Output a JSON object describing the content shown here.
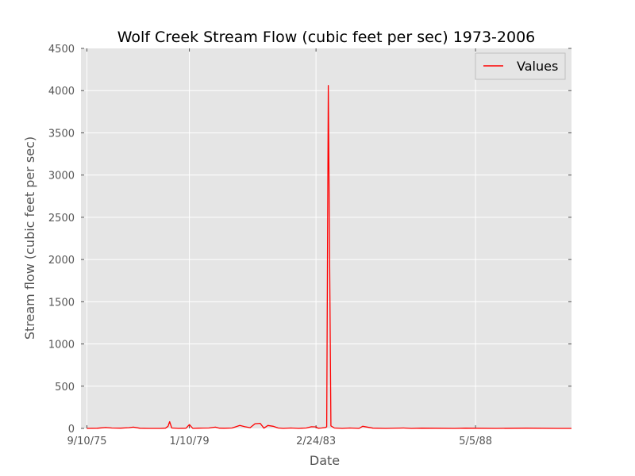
{
  "chart_data": {
    "type": "line",
    "title": "Wolf Creek Stream Flow (cubic feet per sec) 1973-2006",
    "xlabel": "Date",
    "ylabel": "Stream flow (cubic feet per sec)",
    "ylim": [
      0,
      4500
    ],
    "yticks": [
      0,
      500,
      1000,
      1500,
      2000,
      2500,
      3000,
      3500,
      4000,
      4500
    ],
    "xlim": [
      "1975-07-01",
      "1991-06-20"
    ],
    "xticks": [
      {
        "label": "9/10/75",
        "date": "1975-09-10"
      },
      {
        "label": "1/10/79",
        "date": "1979-01-10"
      },
      {
        "label": "2/24/83",
        "date": "1983-02-24"
      },
      {
        "label": "5/5/88",
        "date": "1988-05-05"
      }
    ],
    "grid": true,
    "legend_position": "top-right",
    "colors": {
      "plot_bg": "#e5e5e5",
      "grid": "#ffffff",
      "line": "#ff0000"
    },
    "series": [
      {
        "name": "Values",
        "x": [
          "1975-09-10",
          "1976-01-10",
          "1976-04-20",
          "1976-07-01",
          "1976-10-15",
          "1977-01-20",
          "1977-03-15",
          "1977-06-01",
          "1977-09-10",
          "1977-11-25",
          "1978-02-01",
          "1978-04-01",
          "1978-05-01",
          "1978-05-20",
          "1978-06-15",
          "1978-09-01",
          "1978-12-01",
          "1979-01-10",
          "1979-02-20",
          "1979-05-01",
          "1979-09-01",
          "1979-11-15",
          "1980-01-01",
          "1980-03-01",
          "1980-06-01",
          "1980-09-01",
          "1980-11-01",
          "1981-01-01",
          "1981-03-01",
          "1981-05-01",
          "1981-06-15",
          "1981-08-01",
          "1981-10-01",
          "1981-12-01",
          "1982-02-01",
          "1982-05-01",
          "1982-08-01",
          "1982-11-01",
          "1983-01-01",
          "1983-02-24",
          "1983-03-20",
          "1983-05-01",
          "1983-06-15",
          "1983-07-01",
          "1983-07-20",
          "1983-08-20",
          "1983-10-01",
          "1984-01-01",
          "1984-04-01",
          "1984-07-20",
          "1984-09-01",
          "1985-01-01",
          "1985-06-01",
          "1986-01-01",
          "1986-04-01",
          "1986-08-01",
          "1987-01-01",
          "1987-09-01",
          "1988-01-01",
          "1988-05-05",
          "1989-01-01",
          "1990-01-01",
          "1991-01-01",
          "1991-06-20"
        ],
        "y": [
          0,
          2,
          10,
          5,
          3,
          8,
          15,
          2,
          0,
          0,
          0,
          3,
          25,
          80,
          5,
          0,
          2,
          45,
          0,
          3,
          5,
          15,
          3,
          2,
          5,
          35,
          20,
          8,
          55,
          60,
          3,
          35,
          25,
          5,
          0,
          5,
          0,
          5,
          20,
          18,
          2,
          5,
          10,
          20,
          4060,
          30,
          5,
          0,
          5,
          0,
          25,
          3,
          0,
          5,
          0,
          3,
          2,
          0,
          3,
          2,
          0,
          3,
          0,
          0
        ]
      }
    ]
  }
}
